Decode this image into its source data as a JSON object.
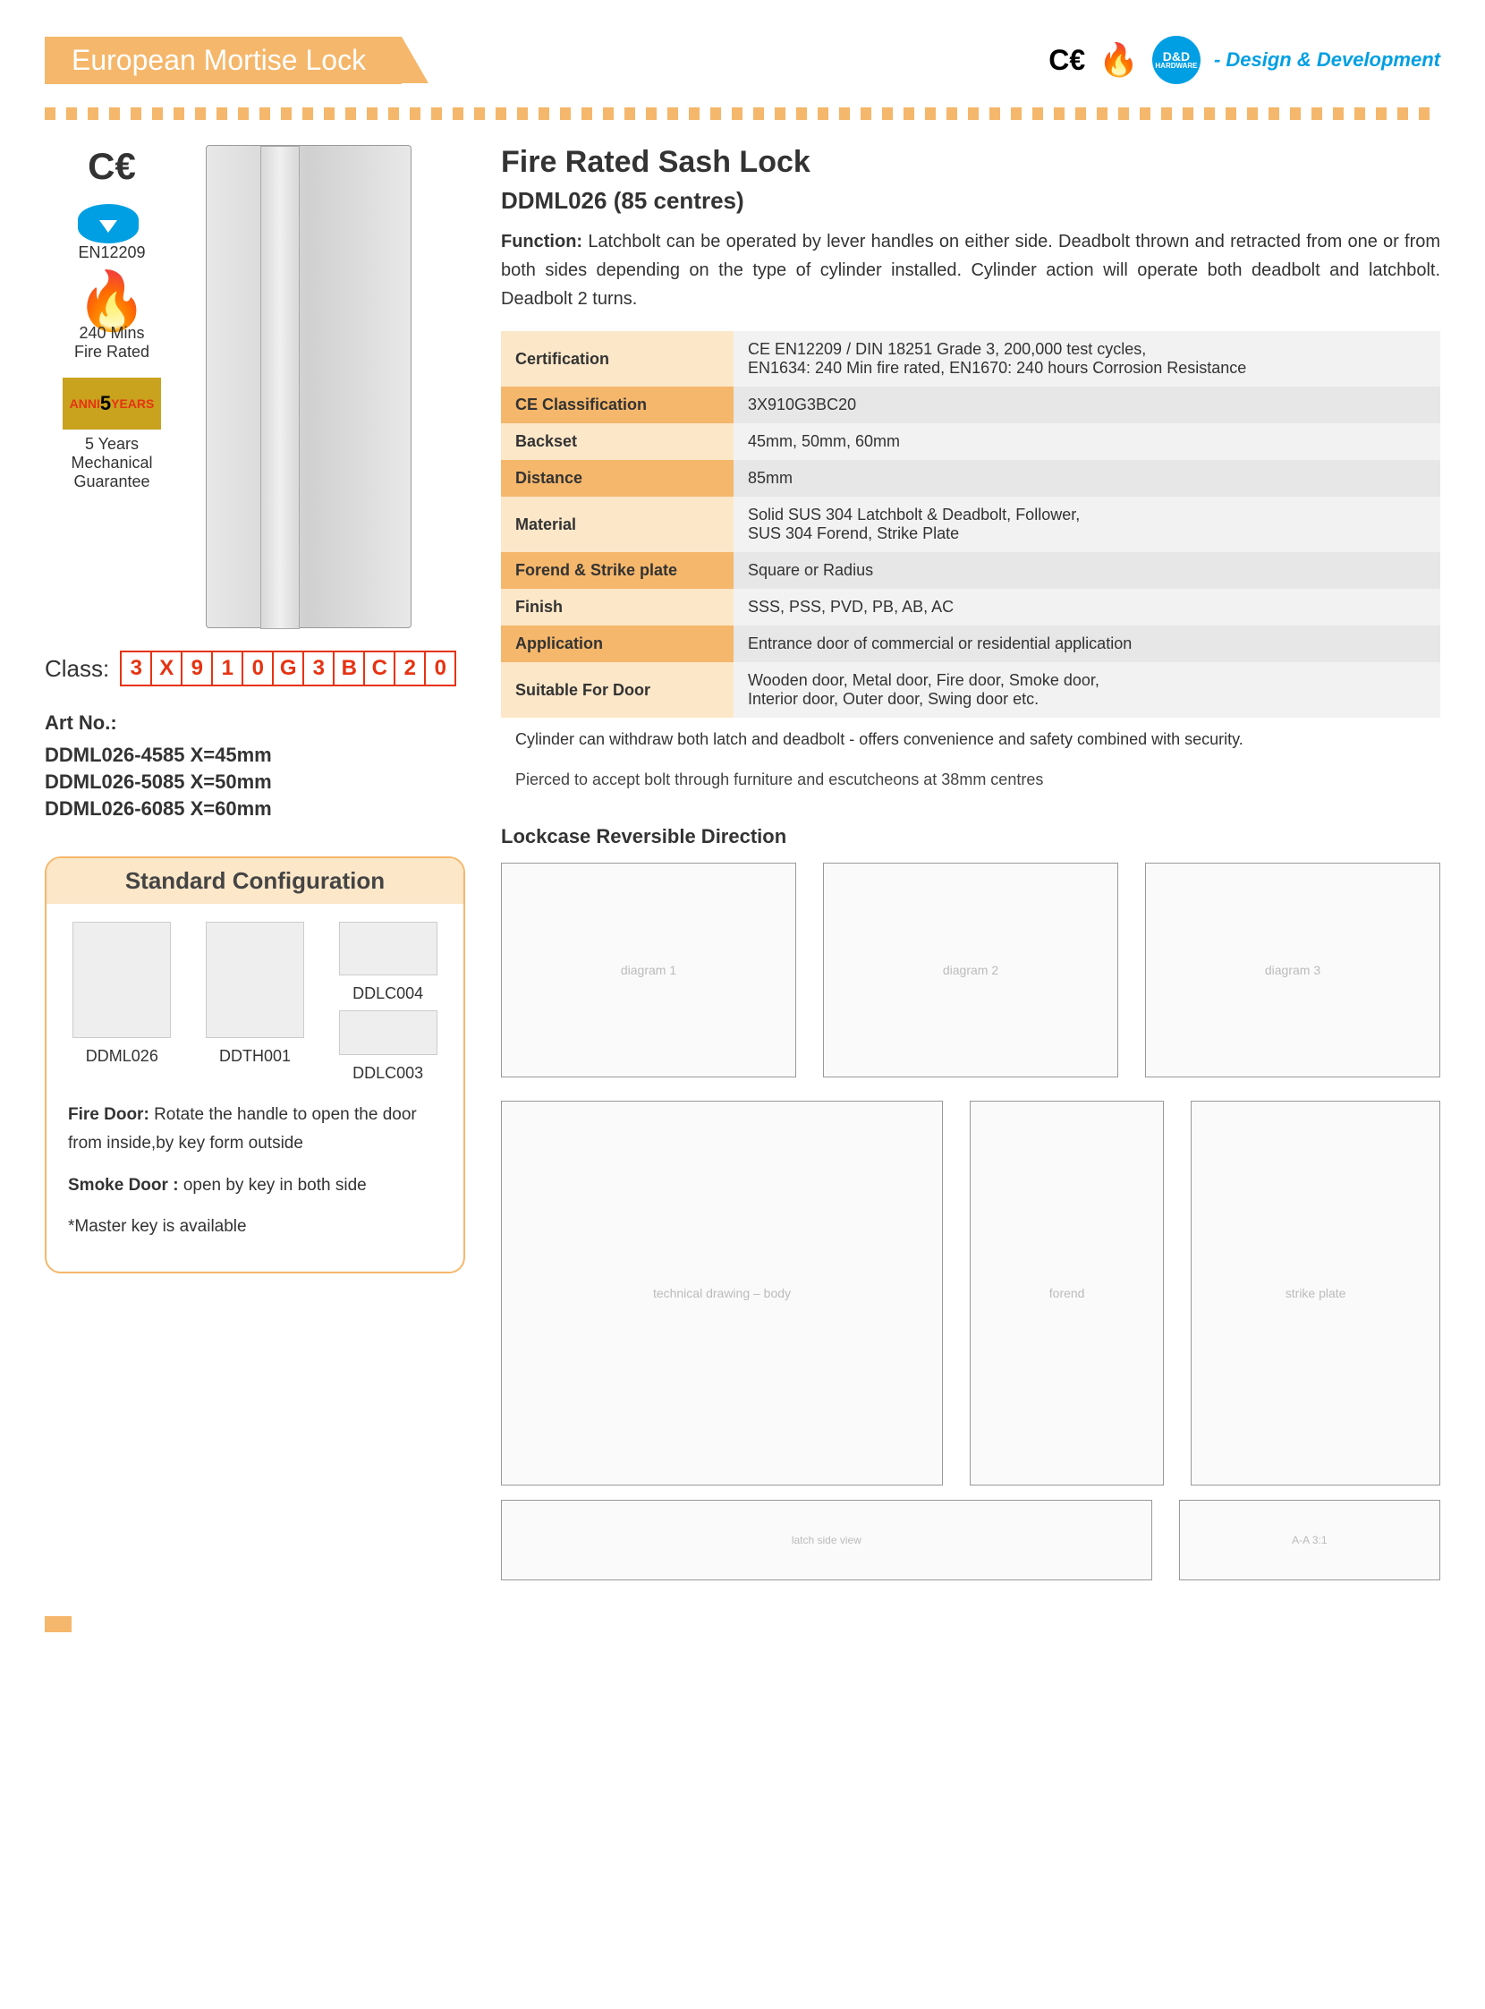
{
  "header": {
    "title": "European Mortise Lock",
    "brand_badge": "D&D",
    "brand_sub": "HARDWARE",
    "tagline": "- Design & Development"
  },
  "left": {
    "certs": {
      "standard": "EN12209",
      "fire_rating": "240 Mins\nFire Rated",
      "warranty_label": "ANNI 5 YEARS",
      "warranty_text": "5 Years\nMechanical\nGuarantee"
    },
    "class_label": "Class:",
    "class_boxes": [
      "3",
      "X",
      "9",
      "1",
      "0",
      "G",
      "3",
      "B",
      "C",
      "2",
      "0"
    ],
    "art_no_label": "Art No.:",
    "art_lines": [
      "DDML026-4585   X=45mm",
      "DDML026-5085   X=50mm",
      "DDML026-6085   X=60mm"
    ],
    "std_config": {
      "title": "Standard Configuration",
      "items": [
        {
          "code": "DDML026"
        },
        {
          "code": "DDTH001"
        },
        {
          "code_top": "DDLC004",
          "code": "DDLC003"
        }
      ],
      "note_fire_label": "Fire Door:",
      "note_fire": "Rotate the handle to open the door from inside,by key form outside",
      "note_smoke_label": "Smoke Door :",
      "note_smoke": "open by key in both side",
      "note_master": "*Master key is available"
    }
  },
  "right": {
    "title": "Fire Rated Sash Lock",
    "subtitle": "DDML026  (85 centres)",
    "function_label": "Function:",
    "function_text": "Latchbolt can be operated by lever handles on either side. Deadbolt thrown and retracted from one or from both sides depending on the type of cylinder installed. Cylinder action will operate both deadbolt and latchbolt. Deadbolt 2 turns.",
    "spec_rows": [
      {
        "k": "Certification",
        "v": "CE EN12209 / DIN 18251 Grade 3, 200,000 test cycles,\nEN1634: 240 Min fire rated, EN1670: 240 hours Corrosion Resistance"
      },
      {
        "k": "CE Classification",
        "v": "3X910G3BC20"
      },
      {
        "k": "Backset",
        "v": "45mm, 50mm, 60mm"
      },
      {
        "k": "Distance",
        "v": "85mm"
      },
      {
        "k": "Material",
        "v": "Solid SUS 304 Latchbolt & Deadbolt, Follower,\nSUS 304 Forend, Strike Plate"
      },
      {
        "k": "Forend & Strike plate",
        "v": "Square or Radius"
      },
      {
        "k": "Finish",
        "v": "SSS, PSS, PVD, PB, AB, AC"
      },
      {
        "k": "Application",
        "v": "Entrance door of commercial or residential application"
      },
      {
        "k": "Suitable For Door",
        "v": "Wooden door, Metal door, Fire door, Smoke door,\nInterior door, Outer door, Swing door etc."
      }
    ],
    "note1": "Cylinder can withdraw both latch and deadbolt - offers convenience and safety combined with security.",
    "note2": "Pierced to accept bolt through furniture and escutcheons at 38mm centres",
    "lockcase_title": "Lockcase Reversible Direction"
  },
  "colors": {
    "accent_orange": "#f5b76b",
    "accent_orange_light": "#fce7c8",
    "blue": "#009fe3",
    "red": "#e63312",
    "grey_row_odd": "#f2f2f2",
    "grey_row_even": "#e7e7e7"
  }
}
